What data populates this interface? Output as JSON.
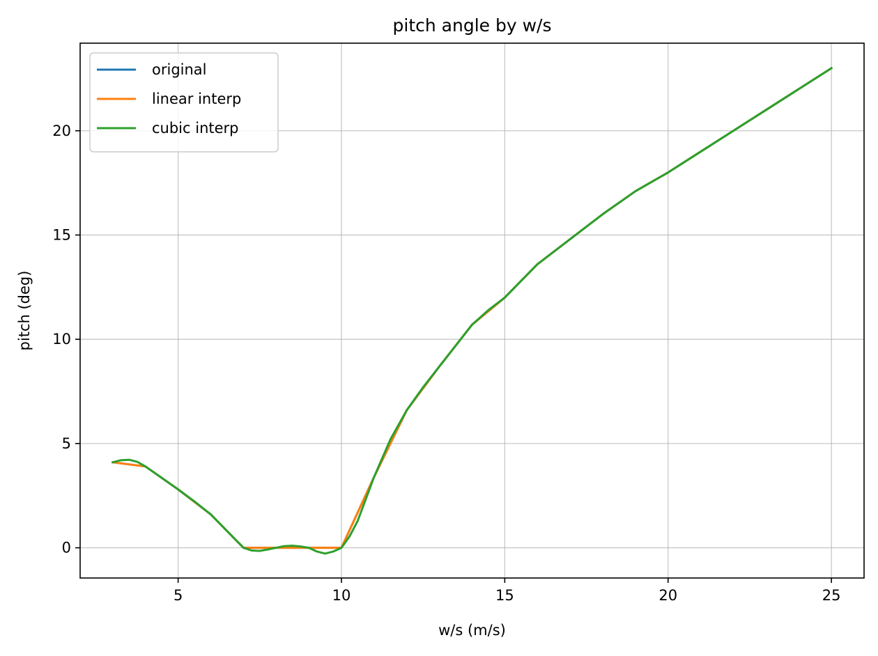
{
  "chart_data": {
    "type": "line",
    "title": "pitch angle by w/s",
    "xlabel": "w/s (m/s)",
    "ylabel": "pitch (deg)",
    "xlim": [
      2.0,
      26.0
    ],
    "ylim": [
      -1.45,
      24.2
    ],
    "xticks": [
      5,
      10,
      15,
      20,
      25
    ],
    "yticks": [
      0,
      5,
      10,
      15,
      20
    ],
    "grid": true,
    "legend": {
      "location": "top-left"
    },
    "series": [
      {
        "name": "original",
        "color": "#1f77b4",
        "x": [
          3,
          4,
          5,
          6,
          7,
          8,
          9,
          10,
          11,
          12,
          13,
          14,
          15,
          16,
          17,
          18,
          19,
          20,
          21,
          22,
          23,
          24,
          25
        ],
        "y": [
          4.1,
          3.9,
          2.8,
          1.6,
          0.0,
          0.0,
          0.0,
          0.0,
          3.4,
          6.6,
          8.7,
          10.7,
          12.0,
          13.6,
          14.8,
          16.0,
          17.1,
          18.0,
          19.0,
          20.0,
          21.0,
          22.0,
          23.0
        ]
      },
      {
        "name": "linear interp",
        "color": "#ff7f0e",
        "x": [
          3,
          4,
          5,
          6,
          7,
          8,
          9,
          10,
          11,
          12,
          13,
          14,
          15,
          16,
          17,
          18,
          19,
          20,
          21,
          22,
          23,
          24,
          25
        ],
        "y": [
          4.1,
          3.9,
          2.8,
          1.6,
          0.0,
          0.0,
          0.0,
          0.0,
          3.4,
          6.6,
          8.7,
          10.7,
          12.0,
          13.6,
          14.8,
          16.0,
          17.1,
          18.0,
          19.0,
          20.0,
          21.0,
          22.0,
          23.0
        ]
      },
      {
        "name": "cubic interp",
        "color": "#2ca02c",
        "x": [
          3.0,
          3.25,
          3.5,
          3.75,
          4.0,
          4.5,
          5.0,
          5.5,
          6.0,
          6.5,
          7.0,
          7.25,
          7.5,
          7.75,
          8.0,
          8.25,
          8.5,
          8.75,
          9.0,
          9.25,
          9.5,
          9.75,
          10.0,
          10.25,
          10.5,
          11.0,
          11.5,
          12.0,
          12.5,
          13.0,
          13.5,
          14.0,
          14.5,
          15.0,
          15.5,
          16.0,
          17.0,
          18.0,
          19.0,
          20.0,
          21.0,
          22.0,
          23.0,
          24.0,
          25.0
        ],
        "y": [
          4.1,
          4.2,
          4.22,
          4.12,
          3.9,
          3.35,
          2.8,
          2.22,
          1.6,
          0.8,
          0.0,
          -0.13,
          -0.15,
          -0.08,
          0.0,
          0.08,
          0.1,
          0.06,
          0.0,
          -0.18,
          -0.28,
          -0.18,
          0.0,
          0.55,
          1.3,
          3.4,
          5.2,
          6.6,
          7.7,
          8.7,
          9.7,
          10.7,
          11.4,
          12.0,
          12.8,
          13.6,
          14.8,
          16.0,
          17.1,
          18.0,
          19.0,
          20.0,
          21.0,
          22.0,
          23.0
        ]
      }
    ]
  }
}
